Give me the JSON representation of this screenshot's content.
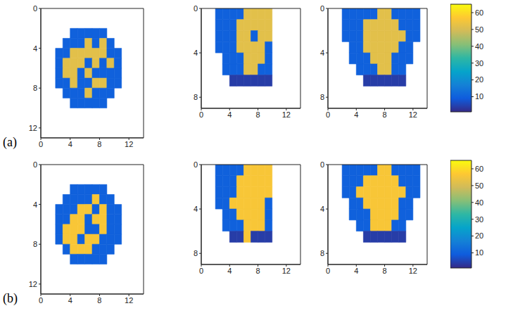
{
  "chart_data": [
    {
      "type": "heatmap",
      "label": "(a)",
      "xlim": [
        0,
        14
      ],
      "ylim": [
        0,
        13
      ],
      "xticks": [
        0,
        4,
        8,
        12
      ],
      "yticks": [
        0,
        4,
        8,
        12
      ],
      "cells": [
        [
          null,
          null,
          null,
          null,
          null,
          null,
          null,
          null,
          null,
          null,
          null,
          null,
          null,
          null
        ],
        [
          null,
          null,
          null,
          null,
          null,
          null,
          null,
          null,
          null,
          null,
          null,
          null,
          null,
          null
        ],
        [
          null,
          null,
          null,
          null,
          10,
          10,
          10,
          10,
          10,
          null,
          null,
          null,
          null,
          null
        ],
        [
          null,
          null,
          null,
          10,
          10,
          10,
          52,
          10,
          52,
          10,
          null,
          null,
          null,
          null
        ],
        [
          null,
          null,
          10,
          10,
          52,
          52,
          52,
          52,
          52,
          10,
          10,
          null,
          null,
          null
        ],
        [
          null,
          null,
          10,
          52,
          52,
          52,
          10,
          52,
          10,
          52,
          10,
          null,
          null,
          null
        ],
        [
          null,
          null,
          10,
          52,
          52,
          10,
          52,
          10,
          10,
          10,
          10,
          null,
          null,
          null
        ],
        [
          null,
          null,
          10,
          10,
          52,
          10,
          10,
          52,
          52,
          10,
          10,
          null,
          null,
          null
        ],
        [
          null,
          null,
          null,
          10,
          10,
          10,
          52,
          10,
          10,
          10,
          null,
          null,
          null,
          null
        ],
        [
          null,
          null,
          null,
          null,
          10,
          10,
          10,
          10,
          10,
          null,
          null,
          null,
          null,
          null
        ],
        [
          null,
          null,
          null,
          null,
          null,
          null,
          null,
          null,
          null,
          null,
          null,
          null,
          null,
          null
        ],
        [
          null,
          null,
          null,
          null,
          null,
          null,
          null,
          null,
          null,
          null,
          null,
          null,
          null,
          null
        ],
        [
          null,
          null,
          null,
          null,
          null,
          null,
          null,
          null,
          null,
          null,
          null,
          null,
          null,
          null
        ]
      ]
    },
    {
      "type": "heatmap",
      "xlim": [
        0,
        14
      ],
      "ylim": [
        0,
        9
      ],
      "xticks": [
        0,
        4,
        8,
        12
      ],
      "yticks": [
        0,
        4,
        8
      ],
      "cells": [
        [
          null,
          null,
          10,
          10,
          10,
          10,
          52,
          52,
          52,
          52,
          null,
          null,
          null,
          null
        ],
        [
          null,
          null,
          10,
          10,
          10,
          52,
          52,
          52,
          52,
          52,
          null,
          null,
          null,
          null
        ],
        [
          null,
          null,
          10,
          10,
          10,
          52,
          52,
          10,
          52,
          52,
          null,
          null,
          null,
          null
        ],
        [
          null,
          null,
          10,
          10,
          10,
          52,
          52,
          52,
          52,
          10,
          null,
          null,
          null,
          null
        ],
        [
          null,
          null,
          null,
          10,
          10,
          10,
          52,
          52,
          52,
          10,
          null,
          null,
          null,
          null
        ],
        [
          null,
          null,
          null,
          10,
          10,
          10,
          52,
          52,
          10,
          10,
          null,
          null,
          null,
          null
        ],
        [
          null,
          null,
          null,
          null,
          4,
          4,
          4,
          4,
          4,
          4,
          null,
          null,
          null,
          null
        ],
        [
          null,
          null,
          null,
          null,
          null,
          null,
          null,
          null,
          null,
          null,
          null,
          null,
          null,
          null
        ],
        [
          null,
          null,
          null,
          null,
          null,
          null,
          null,
          null,
          null,
          null,
          null,
          null,
          null,
          null
        ]
      ]
    },
    {
      "type": "heatmap",
      "xlim": [
        0,
        14
      ],
      "ylim": [
        0,
        9
      ],
      "xticks": [
        0,
        4,
        8,
        12
      ],
      "yticks": [
        0,
        4,
        8
      ],
      "colorbar": {
        "range": [
          1,
          65
        ],
        "ticks": [
          10,
          20,
          30,
          40,
          50,
          60
        ]
      },
      "cells": [
        [
          null,
          null,
          10,
          10,
          10,
          10,
          10,
          52,
          52,
          10,
          10,
          10,
          10,
          null
        ],
        [
          null,
          null,
          10,
          10,
          10,
          52,
          52,
          52,
          52,
          52,
          10,
          10,
          10,
          null
        ],
        [
          null,
          null,
          10,
          10,
          10,
          52,
          52,
          52,
          52,
          52,
          52,
          10,
          10,
          null
        ],
        [
          null,
          null,
          null,
          10,
          10,
          52,
          52,
          52,
          52,
          52,
          10,
          10,
          null,
          null
        ],
        [
          null,
          null,
          null,
          10,
          10,
          10,
          52,
          52,
          52,
          10,
          10,
          10,
          null,
          null
        ],
        [
          null,
          null,
          null,
          null,
          10,
          10,
          10,
          52,
          52,
          10,
          10,
          null,
          null,
          null
        ],
        [
          null,
          null,
          null,
          null,
          null,
          4,
          4,
          4,
          4,
          4,
          4,
          null,
          null,
          null
        ],
        [
          null,
          null,
          null,
          null,
          null,
          null,
          null,
          null,
          null,
          null,
          null,
          null,
          null,
          null
        ],
        [
          null,
          null,
          null,
          null,
          null,
          null,
          null,
          null,
          null,
          null,
          null,
          null,
          null,
          null
        ]
      ]
    },
    {
      "type": "heatmap",
      "label": "(b)",
      "xlim": [
        0,
        14
      ],
      "ylim": [
        0,
        13
      ],
      "xticks": [
        0,
        4,
        8,
        12
      ],
      "yticks": [
        0,
        4,
        8,
        12
      ],
      "cells": [
        [
          null,
          null,
          null,
          null,
          null,
          null,
          null,
          null,
          null,
          null,
          null,
          null,
          null,
          null
        ],
        [
          null,
          null,
          null,
          null,
          null,
          null,
          null,
          null,
          null,
          null,
          null,
          null,
          null,
          null
        ],
        [
          null,
          null,
          null,
          null,
          10,
          10,
          10,
          10,
          10,
          null,
          null,
          null,
          null,
          null
        ],
        [
          null,
          null,
          null,
          10,
          10,
          10,
          10,
          56,
          10,
          10,
          null,
          null,
          null,
          null
        ],
        [
          null,
          null,
          10,
          10,
          10,
          56,
          56,
          10,
          56,
          10,
          10,
          null,
          null,
          null
        ],
        [
          null,
          null,
          10,
          10,
          56,
          56,
          10,
          56,
          56,
          10,
          10,
          null,
          null,
          null
        ],
        [
          null,
          null,
          10,
          56,
          56,
          56,
          10,
          10,
          56,
          10,
          10,
          null,
          null,
          null
        ],
        [
          null,
          null,
          10,
          56,
          56,
          10,
          56,
          56,
          10,
          10,
          10,
          null,
          null,
          null
        ],
        [
          null,
          null,
          null,
          10,
          56,
          56,
          56,
          10,
          10,
          10,
          null,
          null,
          null,
          null
        ],
        [
          null,
          null,
          null,
          null,
          10,
          10,
          10,
          10,
          10,
          null,
          null,
          null,
          null,
          null
        ],
        [
          null,
          null,
          null,
          null,
          null,
          null,
          null,
          null,
          null,
          null,
          null,
          null,
          null,
          null
        ],
        [
          null,
          null,
          null,
          null,
          null,
          null,
          null,
          null,
          null,
          null,
          null,
          null,
          null,
          null
        ],
        [
          null,
          null,
          null,
          null,
          null,
          null,
          null,
          null,
          null,
          null,
          null,
          null,
          null,
          null
        ]
      ]
    },
    {
      "type": "heatmap",
      "xlim": [
        0,
        14
      ],
      "ylim": [
        0,
        9
      ],
      "xticks": [
        0,
        4,
        8,
        12
      ],
      "yticks": [
        0,
        4,
        8
      ],
      "cells": [
        [
          null,
          null,
          10,
          10,
          10,
          10,
          56,
          56,
          56,
          56,
          null,
          null,
          null,
          null
        ],
        [
          null,
          null,
          10,
          10,
          10,
          56,
          56,
          56,
          56,
          56,
          null,
          null,
          null,
          null
        ],
        [
          null,
          null,
          10,
          10,
          10,
          56,
          56,
          56,
          56,
          56,
          null,
          null,
          null,
          null
        ],
        [
          null,
          null,
          10,
          10,
          56,
          56,
          56,
          56,
          56,
          10,
          null,
          null,
          null,
          null
        ],
        [
          null,
          null,
          null,
          10,
          10,
          56,
          56,
          56,
          56,
          10,
          null,
          null,
          null,
          null
        ],
        [
          null,
          null,
          null,
          10,
          10,
          10,
          56,
          56,
          56,
          10,
          null,
          null,
          null,
          null
        ],
        [
          null,
          null,
          null,
          null,
          4,
          4,
          56,
          4,
          4,
          4,
          null,
          null,
          null,
          null
        ],
        [
          null,
          null,
          null,
          null,
          null,
          null,
          null,
          null,
          null,
          null,
          null,
          null,
          null,
          null
        ],
        [
          null,
          null,
          null,
          null,
          null,
          null,
          null,
          null,
          null,
          null,
          null,
          null,
          null,
          null
        ]
      ]
    },
    {
      "type": "heatmap",
      "xlim": [
        0,
        14
      ],
      "ylim": [
        0,
        9
      ],
      "xticks": [
        0,
        4,
        8,
        12
      ],
      "yticks": [
        0,
        4,
        8
      ],
      "colorbar": {
        "range": [
          1,
          65
        ],
        "ticks": [
          10,
          20,
          30,
          40,
          50,
          60
        ]
      },
      "cells": [
        [
          null,
          null,
          10,
          10,
          10,
          10,
          10,
          56,
          56,
          10,
          10,
          10,
          10,
          null
        ],
        [
          null,
          null,
          10,
          10,
          10,
          56,
          56,
          56,
          56,
          56,
          10,
          10,
          10,
          null
        ],
        [
          null,
          null,
          10,
          10,
          56,
          56,
          56,
          56,
          56,
          56,
          56,
          10,
          10,
          null
        ],
        [
          null,
          null,
          null,
          10,
          10,
          56,
          56,
          56,
          56,
          56,
          10,
          10,
          null,
          null
        ],
        [
          null,
          null,
          null,
          10,
          10,
          10,
          56,
          56,
          56,
          56,
          10,
          10,
          null,
          null
        ],
        [
          null,
          null,
          null,
          null,
          10,
          10,
          56,
          56,
          56,
          10,
          10,
          null,
          null,
          null
        ],
        [
          null,
          null,
          null,
          null,
          null,
          4,
          4,
          4,
          4,
          4,
          4,
          null,
          null,
          null
        ],
        [
          null,
          null,
          null,
          null,
          null,
          null,
          null,
          null,
          null,
          null,
          null,
          null,
          null,
          null
        ],
        [
          null,
          null,
          null,
          null,
          null,
          null,
          null,
          null,
          null,
          null,
          null,
          null,
          null,
          null
        ]
      ]
    }
  ]
}
